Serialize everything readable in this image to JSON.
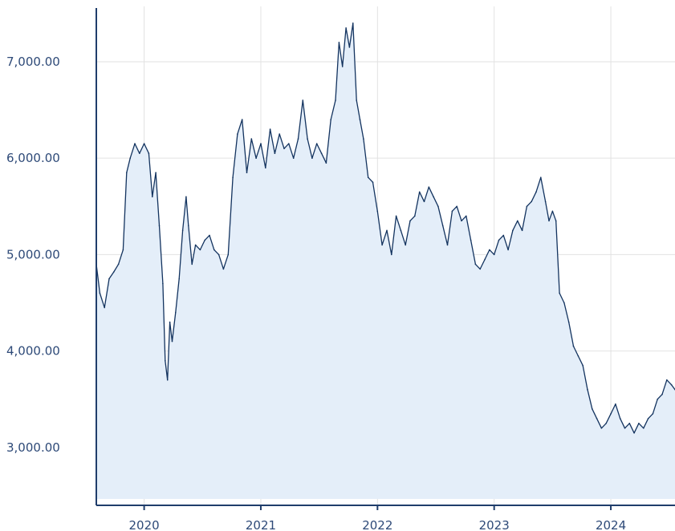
{
  "chart_data": {
    "type": "area",
    "title": "",
    "xlabel": "",
    "ylabel": "",
    "x_range": [
      2019.59,
      2024.55
    ],
    "ylim": [
      2400,
      7640
    ],
    "grid": true,
    "y_ticks": [
      {
        "value": 3000,
        "label": "3,000.00"
      },
      {
        "value": 4000,
        "label": "4,000.00"
      },
      {
        "value": 5000,
        "label": "5,000.00"
      },
      {
        "value": 6000,
        "label": "6,000.00"
      },
      {
        "value": 7000,
        "label": "7,000.00"
      }
    ],
    "x_ticks": [
      {
        "value": 2020,
        "label": "2020"
      },
      {
        "value": 2021,
        "label": "2021"
      },
      {
        "value": 2022,
        "label": "2022"
      },
      {
        "value": 2023,
        "label": "2023"
      },
      {
        "value": 2024,
        "label": "2024"
      }
    ],
    "series": [
      {
        "color": "#13335f",
        "fill": "#e4eef9",
        "points": [
          [
            2019.59,
            4900
          ],
          [
            2019.62,
            4600
          ],
          [
            2019.66,
            4450
          ],
          [
            2019.7,
            4750
          ],
          [
            2019.74,
            4820
          ],
          [
            2019.78,
            4900
          ],
          [
            2019.82,
            5050
          ],
          [
            2019.85,
            5850
          ],
          [
            2019.88,
            6000
          ],
          [
            2019.92,
            6150
          ],
          [
            2019.96,
            6050
          ],
          [
            2020.0,
            6150
          ],
          [
            2020.04,
            6050
          ],
          [
            2020.07,
            5600
          ],
          [
            2020.1,
            5850
          ],
          [
            2020.13,
            5300
          ],
          [
            2020.16,
            4700
          ],
          [
            2020.18,
            3900
          ],
          [
            2020.2,
            3700
          ],
          [
            2020.22,
            4300
          ],
          [
            2020.24,
            4100
          ],
          [
            2020.27,
            4400
          ],
          [
            2020.3,
            4750
          ],
          [
            2020.33,
            5250
          ],
          [
            2020.36,
            5600
          ],
          [
            2020.38,
            5300
          ],
          [
            2020.41,
            4900
          ],
          [
            2020.44,
            5100
          ],
          [
            2020.48,
            5050
          ],
          [
            2020.52,
            5150
          ],
          [
            2020.56,
            5200
          ],
          [
            2020.6,
            5050
          ],
          [
            2020.64,
            5000
          ],
          [
            2020.68,
            4850
          ],
          [
            2020.72,
            5000
          ],
          [
            2020.76,
            5800
          ],
          [
            2020.8,
            6250
          ],
          [
            2020.84,
            6400
          ],
          [
            2020.88,
            5850
          ],
          [
            2020.92,
            6200
          ],
          [
            2020.96,
            6000
          ],
          [
            2021.0,
            6150
          ],
          [
            2021.04,
            5900
          ],
          [
            2021.08,
            6300
          ],
          [
            2021.12,
            6050
          ],
          [
            2021.16,
            6250
          ],
          [
            2021.2,
            6100
          ],
          [
            2021.24,
            6150
          ],
          [
            2021.28,
            6000
          ],
          [
            2021.32,
            6200
          ],
          [
            2021.36,
            6600
          ],
          [
            2021.4,
            6200
          ],
          [
            2021.44,
            6000
          ],
          [
            2021.48,
            6150
          ],
          [
            2021.52,
            6050
          ],
          [
            2021.56,
            5950
          ],
          [
            2021.6,
            6400
          ],
          [
            2021.64,
            6600
          ],
          [
            2021.67,
            7200
          ],
          [
            2021.7,
            6950
          ],
          [
            2021.73,
            7350
          ],
          [
            2021.76,
            7150
          ],
          [
            2021.79,
            7400
          ],
          [
            2021.82,
            6600
          ],
          [
            2021.85,
            6400
          ],
          [
            2021.88,
            6200
          ],
          [
            2021.92,
            5800
          ],
          [
            2021.96,
            5750
          ],
          [
            2022.0,
            5450
          ],
          [
            2022.04,
            5100
          ],
          [
            2022.08,
            5250
          ],
          [
            2022.12,
            5000
          ],
          [
            2022.16,
            5400
          ],
          [
            2022.2,
            5250
          ],
          [
            2022.24,
            5100
          ],
          [
            2022.28,
            5350
          ],
          [
            2022.32,
            5400
          ],
          [
            2022.36,
            5650
          ],
          [
            2022.4,
            5550
          ],
          [
            2022.44,
            5700
          ],
          [
            2022.48,
            5600
          ],
          [
            2022.52,
            5500
          ],
          [
            2022.56,
            5300
          ],
          [
            2022.6,
            5100
          ],
          [
            2022.64,
            5450
          ],
          [
            2022.68,
            5500
          ],
          [
            2022.72,
            5350
          ],
          [
            2022.76,
            5400
          ],
          [
            2022.8,
            5150
          ],
          [
            2022.84,
            4900
          ],
          [
            2022.88,
            4850
          ],
          [
            2022.92,
            4950
          ],
          [
            2022.96,
            5050
          ],
          [
            2023.0,
            5000
          ],
          [
            2023.04,
            5150
          ],
          [
            2023.08,
            5200
          ],
          [
            2023.12,
            5050
          ],
          [
            2023.16,
            5250
          ],
          [
            2023.2,
            5350
          ],
          [
            2023.24,
            5250
          ],
          [
            2023.28,
            5500
          ],
          [
            2023.32,
            5550
          ],
          [
            2023.36,
            5650
          ],
          [
            2023.4,
            5800
          ],
          [
            2023.44,
            5550
          ],
          [
            2023.47,
            5350
          ],
          [
            2023.5,
            5450
          ],
          [
            2023.53,
            5350
          ],
          [
            2023.56,
            4600
          ],
          [
            2023.6,
            4500
          ],
          [
            2023.64,
            4300
          ],
          [
            2023.68,
            4050
          ],
          [
            2023.72,
            3950
          ],
          [
            2023.76,
            3850
          ],
          [
            2023.8,
            3600
          ],
          [
            2023.84,
            3400
          ],
          [
            2023.88,
            3300
          ],
          [
            2023.92,
            3200
          ],
          [
            2023.96,
            3250
          ],
          [
            2024.0,
            3350
          ],
          [
            2024.04,
            3450
          ],
          [
            2024.08,
            3300
          ],
          [
            2024.12,
            3200
          ],
          [
            2024.16,
            3250
          ],
          [
            2024.2,
            3150
          ],
          [
            2024.24,
            3250
          ],
          [
            2024.28,
            3200
          ],
          [
            2024.32,
            3300
          ],
          [
            2024.36,
            3350
          ],
          [
            2024.4,
            3500
          ],
          [
            2024.44,
            3550
          ],
          [
            2024.48,
            3700
          ],
          [
            2024.52,
            3650
          ],
          [
            2024.55,
            3600
          ]
        ]
      }
    ]
  }
}
